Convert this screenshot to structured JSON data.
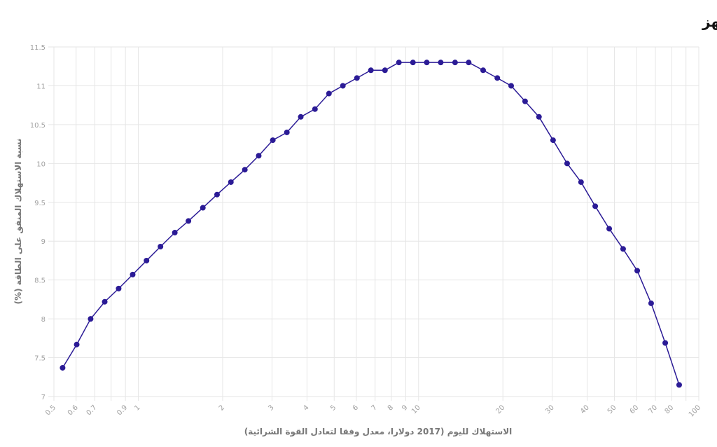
{
  "chart_data": {
    "type": "line",
    "title": "نسبة الاستهلاك على الطاقة (%)، الخط المجهز",
    "xlabel": "الاستهلاك لليوم (2017 دولارا، معدل وفقا لتعادل القوة الشرائية)",
    "ylabel": "نسبة الاستهلاك المنفق على الطاقة (%)",
    "x": [
      0.537,
      0.603,
      0.676,
      0.759,
      0.851,
      0.955,
      1.07,
      1.2,
      1.35,
      1.51,
      1.7,
      1.91,
      2.14,
      2.4,
      2.69,
      3.02,
      3.39,
      3.8,
      4.27,
      4.79,
      5.37,
      6.03,
      6.76,
      7.59,
      8.51,
      9.55,
      10.7,
      12.0,
      13.5,
      15.1,
      17.0,
      19.1,
      21.4,
      24.0,
      26.9,
      30.2,
      33.9,
      38.0,
      42.7,
      47.9,
      53.7,
      60.3,
      67.6,
      75.9,
      85.1
    ],
    "series": [
      {
        "name": "نسبة الاستهلاك على الطاقة",
        "color": "#2b1b96",
        "values": [
          7.37,
          7.67,
          8.0,
          8.22,
          8.39,
          8.57,
          8.75,
          8.93,
          9.11,
          9.26,
          9.43,
          9.6,
          9.76,
          9.92,
          10.1,
          10.3,
          10.4,
          10.6,
          10.7,
          10.9,
          11.0,
          11.1,
          11.2,
          11.2,
          11.3,
          11.3,
          11.3,
          11.3,
          11.3,
          11.3,
          11.2,
          11.1,
          11.0,
          10.8,
          10.6,
          10.3,
          10.0,
          9.76,
          9.45,
          9.16,
          8.9,
          8.62,
          8.2,
          7.69,
          7.15
        ]
      }
    ],
    "xscale": "log",
    "xlim": [
      0.5,
      100
    ],
    "xticks": [
      0.5,
      0.6,
      0.7,
      {
        "value": 0.8,
        "label": null
      },
      0.9,
      1,
      2,
      3,
      4,
      5,
      6,
      7,
      8,
      9,
      10,
      20,
      30,
      40,
      50,
      60,
      70,
      80,
      {
        "value": 90,
        "label": null
      },
      100
    ],
    "ylim": [
      7,
      11.5
    ],
    "yticks": [
      7,
      7.5,
      8,
      8.5,
      9,
      9.5,
      10,
      10.5,
      11,
      11.5
    ],
    "grid": true
  }
}
